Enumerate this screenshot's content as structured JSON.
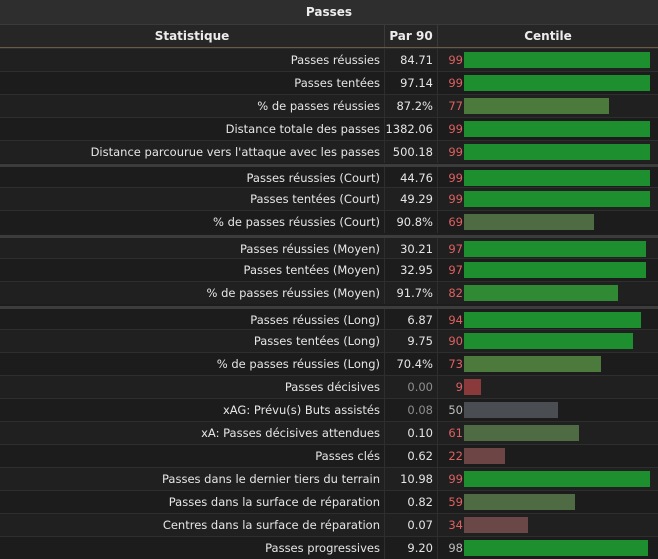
{
  "title": "Passes",
  "headers": {
    "stat": "Statistique",
    "per90": "Par 90",
    "percentile": "Centile"
  },
  "colors": {
    "elite": "#1e8f2e",
    "good": "#2f8a33",
    "above": "#4c7a3d",
    "avg": "#4e6b44",
    "neutral": "#4a4e52",
    "below": "#6a4848",
    "low": "#6e4545",
    "poor": "#8a3a3a"
  },
  "rows": [
    {
      "stat": "Passes réussies",
      "per90": "84.71",
      "percentile": 99
    },
    {
      "stat": "Passes tentées",
      "per90": "97.14",
      "percentile": 99
    },
    {
      "stat": "% de passes réussies",
      "per90": "87.2%",
      "percentile": 77
    },
    {
      "stat": "Distance totale des passes",
      "per90": "1382.06",
      "percentile": 99
    },
    {
      "stat": "Distance parcourue vers l'attaque avec les passes",
      "per90": "500.18",
      "percentile": 99
    },
    {
      "stat": "Passes réussies (Court)",
      "per90": "44.76",
      "percentile": 99
    },
    {
      "stat": "Passes tentées (Court)",
      "per90": "49.29",
      "percentile": 99
    },
    {
      "stat": "% de passes réussies (Court)",
      "per90": "90.8%",
      "percentile": 69
    },
    {
      "stat": "Passes réussies (Moyen)",
      "per90": "30.21",
      "percentile": 97
    },
    {
      "stat": "Passes tentées (Moyen)",
      "per90": "32.95",
      "percentile": 97
    },
    {
      "stat": "% de passes réussies (Moyen)",
      "per90": "91.7%",
      "percentile": 82
    },
    {
      "stat": "Passes réussies (Long)",
      "per90": "6.87",
      "percentile": 94
    },
    {
      "stat": "Passes tentées (Long)",
      "per90": "9.75",
      "percentile": 90
    },
    {
      "stat": "% de passes réussies (Long)",
      "per90": "70.4%",
      "percentile": 73
    },
    {
      "stat": "Passes décisives",
      "per90": "0.00",
      "percentile": 9
    },
    {
      "stat": "xAG: Prévu(s) Buts assistés",
      "per90": "0.08",
      "percentile": 50
    },
    {
      "stat": "xA: Passes décisives attendues",
      "per90": "0.10",
      "percentile": 61
    },
    {
      "stat": "Passes clés",
      "per90": "0.62",
      "percentile": 22
    },
    {
      "stat": "Passes dans le dernier tiers du terrain",
      "per90": "10.98",
      "percentile": 99
    },
    {
      "stat": "Passes dans la surface de réparation",
      "per90": "0.82",
      "percentile": 59
    },
    {
      "stat": "Centres dans la surface de réparation",
      "per90": "0.07",
      "percentile": 34
    },
    {
      "stat": "Passes progressives",
      "per90": "9.20",
      "percentile": 98
    }
  ]
}
